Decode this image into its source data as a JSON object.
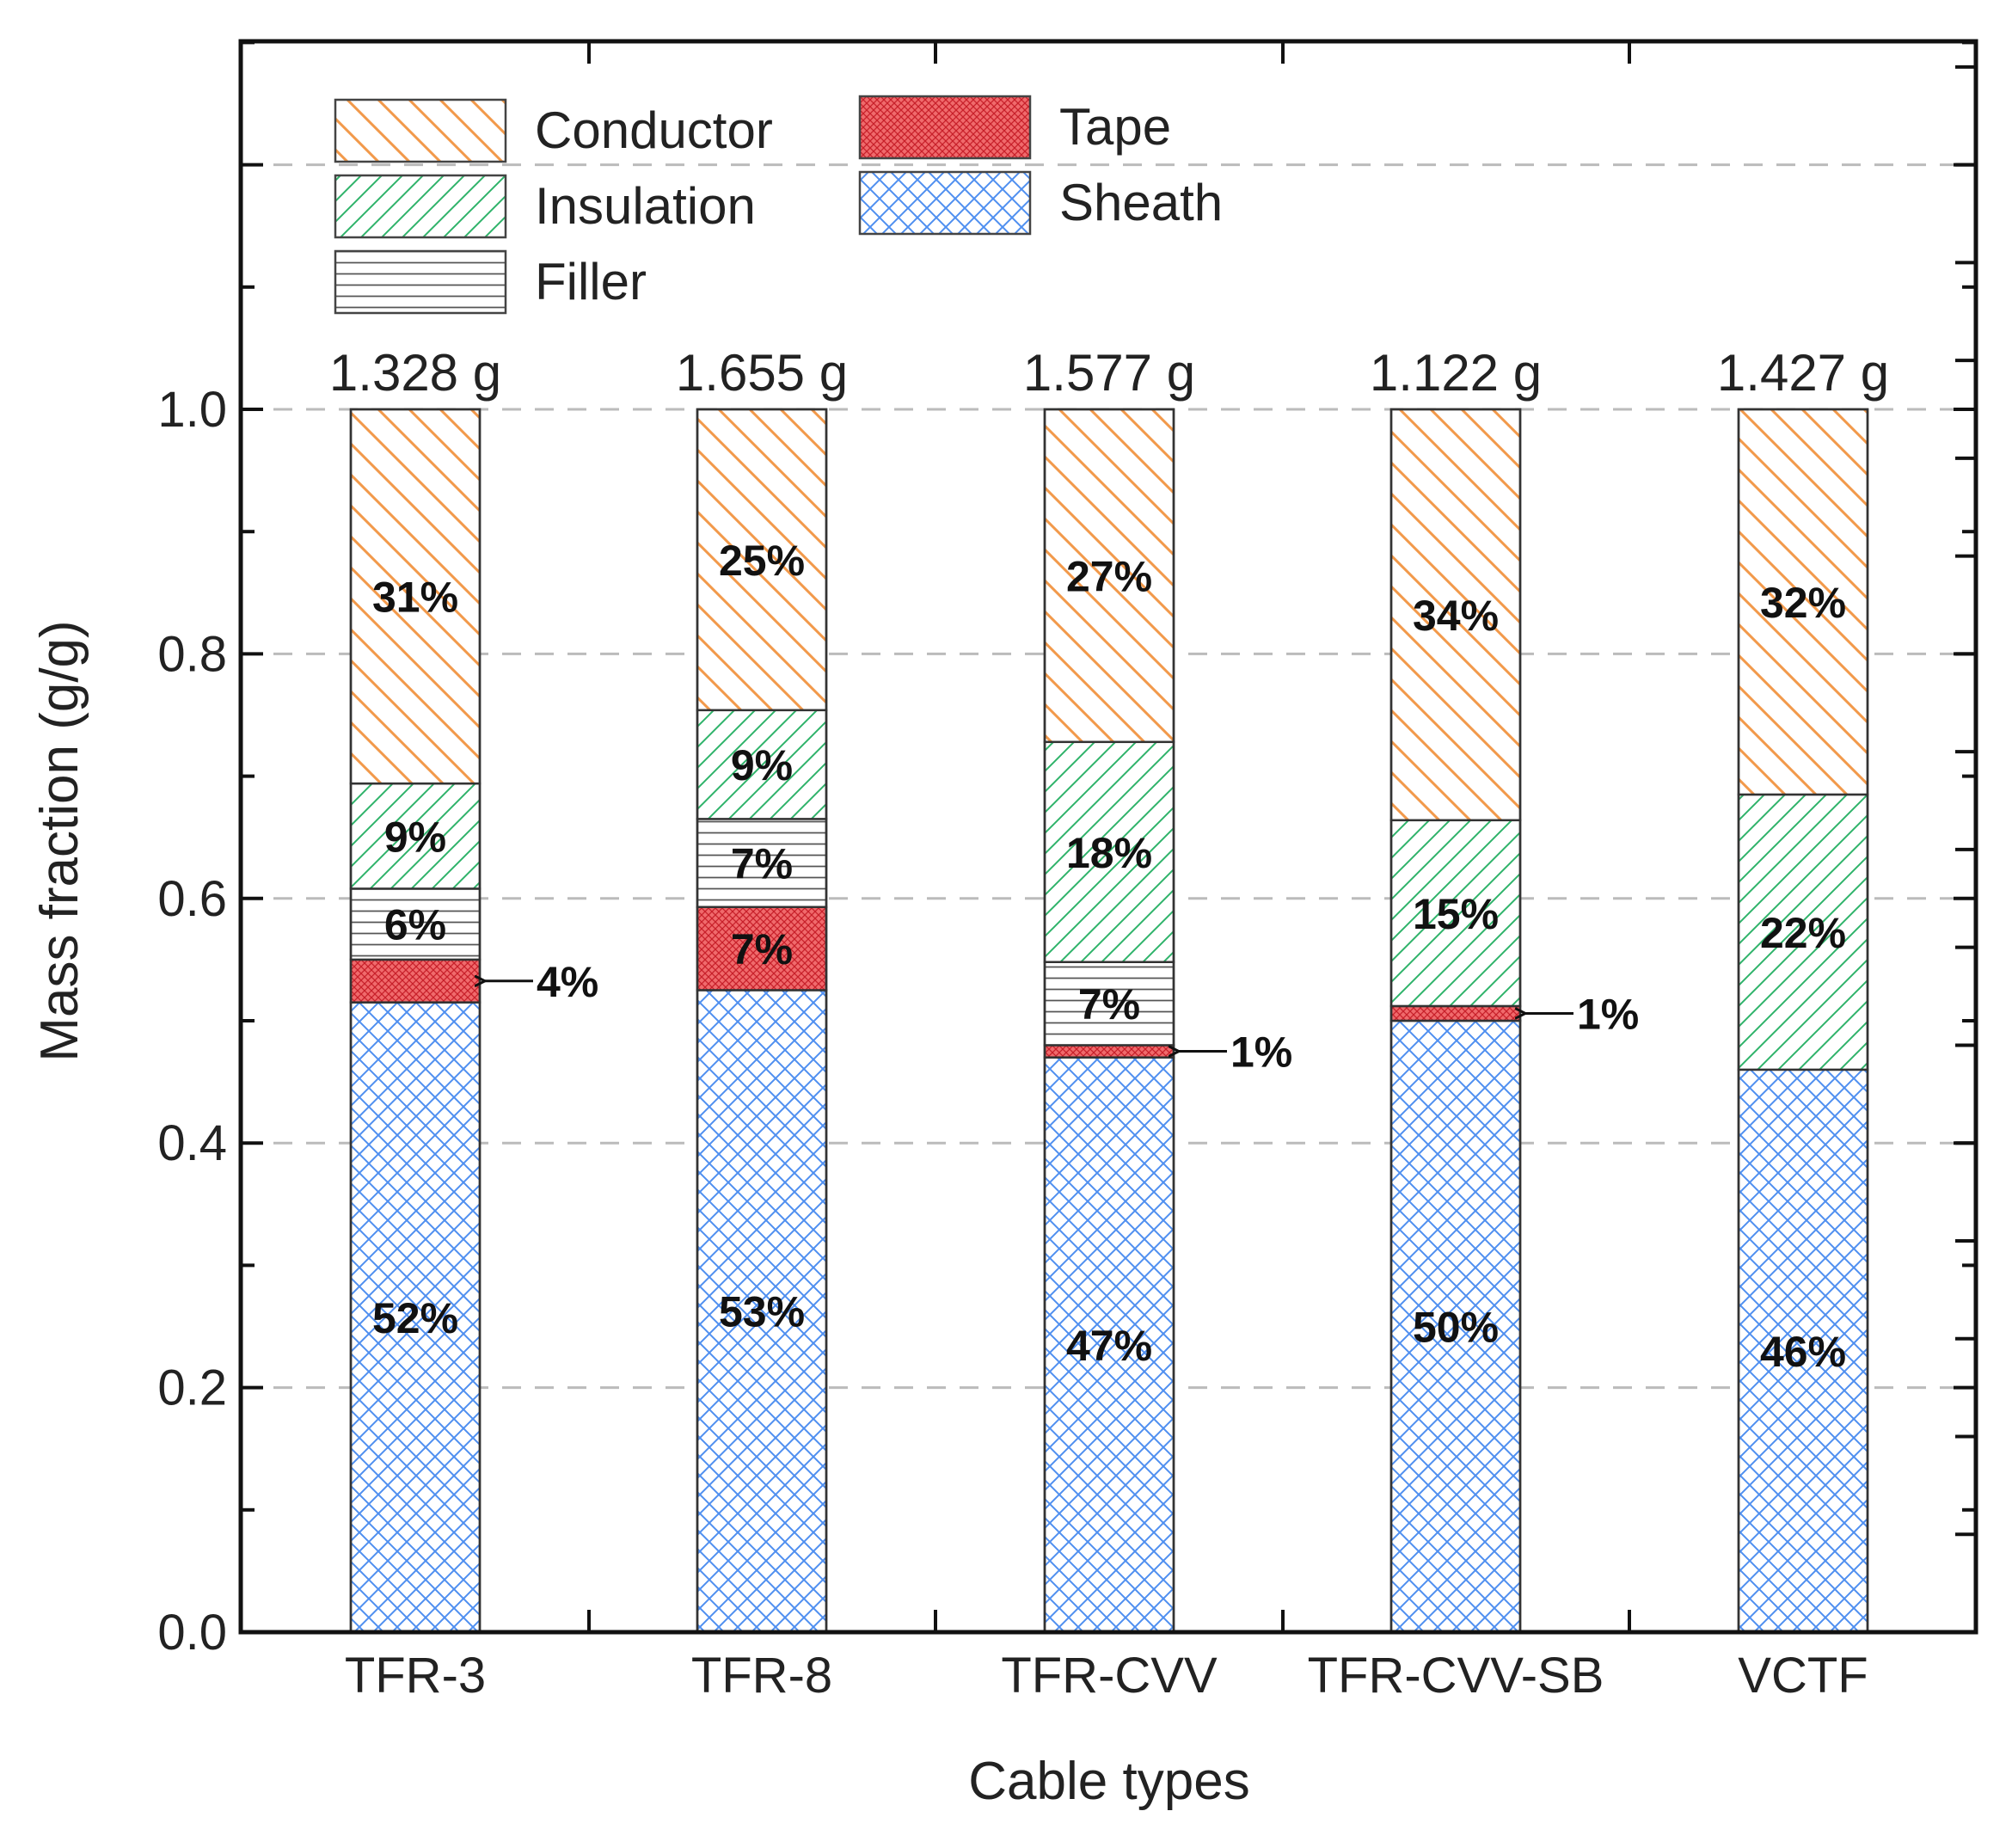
{
  "chart_data": {
    "type": "bar",
    "stacked": true,
    "title": "",
    "xlabel": "Cable types",
    "ylabel": "Mass fraction (g/g)",
    "ylim": [
      0,
      1.25
    ],
    "yticks": [
      "0.0",
      "0.2",
      "0.4",
      "0.6",
      "0.8",
      "1.0"
    ],
    "grid": "horizontal dashed",
    "legend_position": "top-left",
    "categories": [
      "TFR-3",
      "TFR-8",
      "TFR-CVV",
      "TFR-CVV-SB",
      "VCTF"
    ],
    "totals": [
      "1.328 g",
      "1.655 g",
      "1.577 g",
      "1.122 g",
      "1.427 g"
    ],
    "series": [
      {
        "name": "Sheath",
        "color": "#4f8ff0",
        "pattern": "crosshatch",
        "values": [
          0.515,
          0.525,
          0.47,
          0.5,
          0.46
        ],
        "labels": [
          "52%",
          "53%",
          "47%",
          "50%",
          "46%"
        ]
      },
      {
        "name": "Tape",
        "color": "#e8464a",
        "pattern": "dense",
        "values": [
          0.035,
          0.068,
          0.01,
          0.012,
          0.0
        ],
        "labels": [
          "4%",
          "7%",
          "1%",
          "1%",
          ""
        ]
      },
      {
        "name": "Filler",
        "color": "#555555",
        "pattern": "horizontal",
        "values": [
          0.058,
          0.072,
          0.068,
          0.0,
          0.0
        ],
        "labels": [
          "6%",
          "7%",
          "7%",
          "",
          ""
        ]
      },
      {
        "name": "Insulation",
        "color": "#2fb36a",
        "pattern": "diagonal",
        "values": [
          0.086,
          0.089,
          0.18,
          0.152,
          0.225
        ],
        "labels": [
          "9%",
          "9%",
          "18%",
          "15%",
          "22%"
        ]
      },
      {
        "name": "Conductor",
        "color": "#f2994a",
        "pattern": "backdiagonal",
        "values": [
          0.306,
          0.246,
          0.272,
          0.336,
          0.315
        ],
        "labels": [
          "31%",
          "25%",
          "27%",
          "34%",
          "32%"
        ]
      }
    ],
    "callouts": [
      {
        "category": "TFR-3",
        "series": "Tape",
        "text": "4%"
      },
      {
        "category": "TFR-CVV",
        "series": "Tape",
        "text": "1%"
      },
      {
        "category": "TFR-CVV-SB",
        "series": "Tape",
        "text": "1%"
      }
    ],
    "legend": [
      {
        "name": "Conductor"
      },
      {
        "name": "Tape"
      },
      {
        "name": "Insulation"
      },
      {
        "name": "Sheath"
      },
      {
        "name": "Filler"
      }
    ]
  }
}
